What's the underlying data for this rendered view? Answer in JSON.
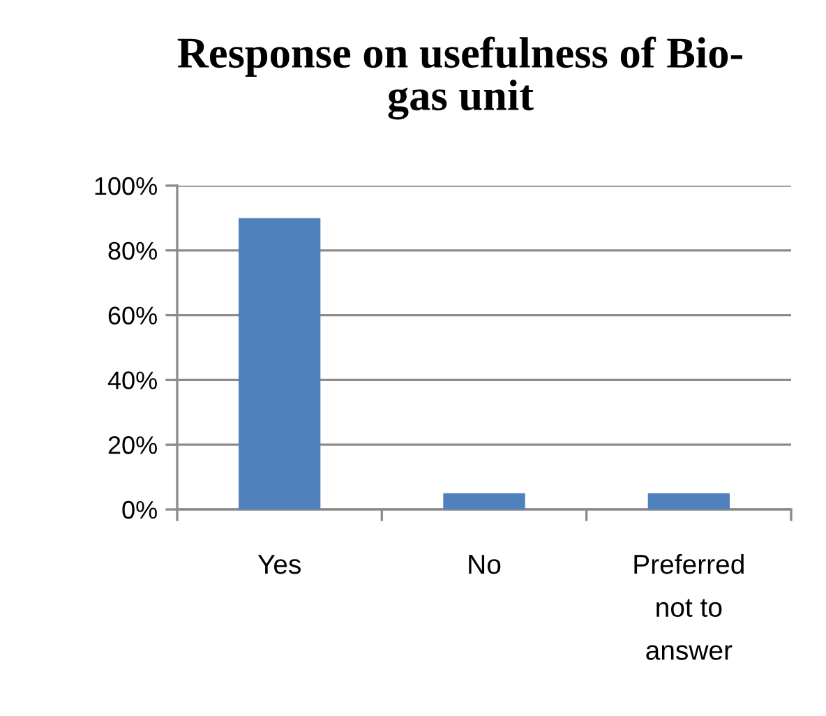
{
  "chart_data": {
    "type": "bar",
    "title": "Response on usefulness of Bio-\ngas unit",
    "categories": [
      "Yes",
      "No",
      "Preferred\nnot to\nanswer"
    ],
    "values": [
      90,
      5,
      5
    ],
    "color": "#4f81bd",
    "ylim": [
      0,
      100
    ],
    "yticks": [
      {
        "value": 0,
        "label": "0%"
      },
      {
        "value": 20,
        "label": "20%"
      },
      {
        "value": 40,
        "label": "40%"
      },
      {
        "value": 60,
        "label": "60%"
      },
      {
        "value": 80,
        "label": "80%"
      },
      {
        "value": 100,
        "label": "100%"
      }
    ],
    "grid": "y",
    "legend": false
  }
}
